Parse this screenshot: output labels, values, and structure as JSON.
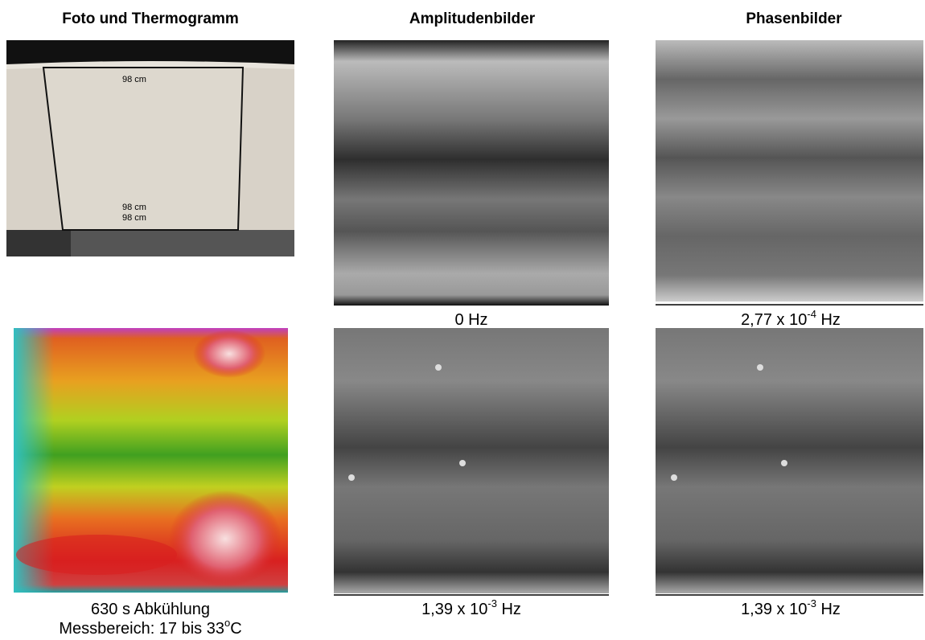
{
  "columns": [
    "Foto und Thermogramm",
    "Amplitudenbilder",
    "Phasenbilder"
  ],
  "photo_labels": [
    "98 cm",
    "98 cm",
    "98 cm"
  ],
  "captions": {
    "amplitude_top": {
      "text": "0 Hz"
    },
    "phase_top": {
      "base": "2,77 x 10",
      "exp": "-4",
      "unit": " Hz"
    },
    "amplitude_bottom": {
      "base": "1,39 x 10",
      "exp": "-3",
      "unit": " Hz"
    },
    "phase_bottom": {
      "base": "1,39 x 10",
      "exp": "-3",
      "unit": " Hz"
    },
    "thermogram": {
      "line1": "630 s Abkühlung",
      "line2_base": "Messbereich: 17 bis 33",
      "line2_sup": "o",
      "line2_end": "C"
    }
  }
}
